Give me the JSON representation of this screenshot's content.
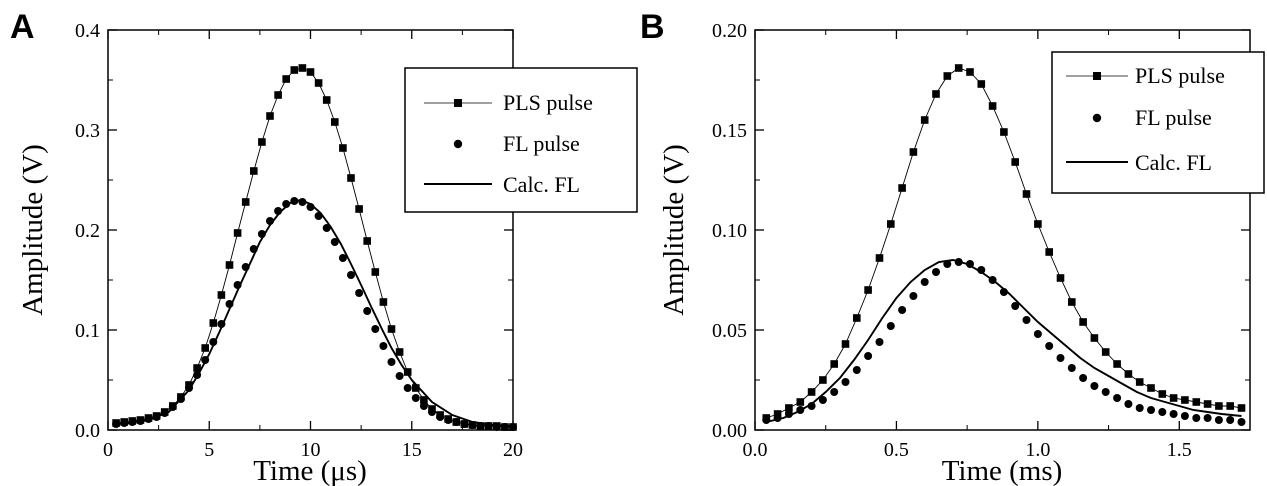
{
  "chart_data": [
    {
      "type": "line",
      "panel_label": "A",
      "xlabel": "Time (μs)",
      "ylabel": "Amplitude (V)",
      "xlim": [
        0,
        20
      ],
      "ylim": [
        0,
        0.4
      ],
      "xticks": [
        "0",
        "5",
        "10",
        "15",
        "20"
      ],
      "yticks": [
        "0.0",
        "0.1",
        "0.2",
        "0.3",
        "0.4"
      ],
      "legend_placement": "top-right",
      "legend": [
        "PLS pulse",
        "FL pulse",
        "Calc. FL"
      ],
      "series": [
        {
          "name": "PLS pulse",
          "style": "squares-thin-line",
          "x": [
            0.4,
            0.8,
            1.2,
            1.6,
            2.0,
            2.4,
            2.8,
            3.2,
            3.6,
            4.0,
            4.4,
            4.8,
            5.2,
            5.6,
            6.0,
            6.4,
            6.8,
            7.2,
            7.6,
            8.0,
            8.4,
            8.8,
            9.2,
            9.6,
            10.0,
            10.4,
            10.8,
            11.2,
            11.6,
            12.0,
            12.4,
            12.8,
            13.2,
            13.6,
            14.0,
            14.4,
            14.8,
            15.2,
            15.6,
            16.0,
            16.4,
            16.8,
            17.2,
            17.6,
            18.0,
            18.4,
            18.8,
            19.2,
            19.6,
            20.0
          ],
          "y": [
            0.007,
            0.008,
            0.009,
            0.01,
            0.012,
            0.014,
            0.018,
            0.024,
            0.033,
            0.045,
            0.062,
            0.082,
            0.107,
            0.135,
            0.165,
            0.197,
            0.228,
            0.259,
            0.288,
            0.314,
            0.335,
            0.351,
            0.36,
            0.362,
            0.358,
            0.347,
            0.33,
            0.308,
            0.282,
            0.252,
            0.221,
            0.189,
            0.158,
            0.128,
            0.101,
            0.078,
            0.058,
            0.042,
            0.03,
            0.021,
            0.015,
            0.011,
            0.008,
            0.006,
            0.005,
            0.004,
            0.004,
            0.004,
            0.003,
            0.003
          ]
        },
        {
          "name": "FL pulse",
          "style": "circles",
          "x": [
            0.4,
            0.8,
            1.2,
            1.6,
            2.0,
            2.4,
            2.8,
            3.2,
            3.6,
            4.0,
            4.4,
            4.8,
            5.2,
            5.6,
            6.0,
            6.4,
            6.8,
            7.2,
            7.6,
            8.0,
            8.4,
            8.8,
            9.2,
            9.6,
            10.0,
            10.4,
            10.8,
            11.2,
            11.6,
            12.0,
            12.4,
            12.8,
            13.2,
            13.6,
            14.0,
            14.4,
            14.8,
            15.2,
            15.6,
            16.0,
            16.4,
            16.8,
            17.2,
            17.6,
            18.0,
            18.4,
            18.8,
            19.2,
            19.6,
            20.0
          ],
          "y": [
            0.006,
            0.007,
            0.008,
            0.009,
            0.011,
            0.013,
            0.017,
            0.023,
            0.031,
            0.042,
            0.055,
            0.07,
            0.088,
            0.106,
            0.126,
            0.145,
            0.163,
            0.181,
            0.196,
            0.209,
            0.219,
            0.226,
            0.229,
            0.228,
            0.223,
            0.214,
            0.202,
            0.188,
            0.172,
            0.155,
            0.137,
            0.119,
            0.101,
            0.084,
            0.068,
            0.054,
            0.042,
            0.032,
            0.024,
            0.018,
            0.013,
            0.01,
            0.008,
            0.006,
            0.005,
            0.004,
            0.004,
            0.003,
            0.003,
            0.003
          ]
        },
        {
          "name": "Calc. FL",
          "style": "solid-line",
          "x": [
            0.4,
            1.0,
            2.0,
            3.0,
            4.0,
            4.5,
            5.0,
            5.5,
            6.0,
            6.5,
            7.0,
            7.5,
            8.0,
            8.5,
            9.0,
            9.5,
            10.0,
            10.5,
            11.0,
            11.5,
            12.0,
            12.5,
            13.0,
            13.5,
            14.0,
            14.5,
            15.0,
            16.0,
            17.0,
            18.0,
            19.0,
            20.0
          ],
          "y": [
            0.006,
            0.007,
            0.01,
            0.018,
            0.04,
            0.057,
            0.076,
            0.098,
            0.121,
            0.144,
            0.166,
            0.188,
            0.205,
            0.218,
            0.227,
            0.23,
            0.226,
            0.217,
            0.203,
            0.186,
            0.166,
            0.145,
            0.123,
            0.102,
            0.082,
            0.065,
            0.05,
            0.028,
            0.015,
            0.008,
            0.005,
            0.004
          ]
        }
      ]
    },
    {
      "type": "line",
      "panel_label": "B",
      "xlabel": "Time (ms)",
      "ylabel": "Amplitude (V)",
      "xlim": [
        0,
        1.75
      ],
      "ylim": [
        0,
        0.2
      ],
      "xticks": [
        "0.0",
        "0.5",
        "1.0",
        "1.5"
      ],
      "yticks": [
        "0.00",
        "0.05",
        "0.10",
        "0.15",
        "0.20"
      ],
      "legend_placement": "top-right",
      "legend": [
        "PLS pulse",
        "FL pulse",
        "Calc. FL"
      ],
      "series": [
        {
          "name": "PLS pulse",
          "style": "squares-thin-line",
          "x": [
            0.04,
            0.08,
            0.12,
            0.16,
            0.2,
            0.24,
            0.28,
            0.32,
            0.36,
            0.4,
            0.44,
            0.48,
            0.52,
            0.56,
            0.6,
            0.64,
            0.68,
            0.72,
            0.76,
            0.8,
            0.84,
            0.88,
            0.92,
            0.96,
            1.0,
            1.04,
            1.08,
            1.12,
            1.16,
            1.2,
            1.24,
            1.28,
            1.32,
            1.36,
            1.4,
            1.44,
            1.48,
            1.52,
            1.56,
            1.6,
            1.64,
            1.68,
            1.72
          ],
          "y": [
            0.006,
            0.008,
            0.011,
            0.014,
            0.019,
            0.025,
            0.033,
            0.043,
            0.056,
            0.07,
            0.086,
            0.103,
            0.121,
            0.139,
            0.155,
            0.168,
            0.177,
            0.181,
            0.179,
            0.173,
            0.162,
            0.149,
            0.134,
            0.118,
            0.103,
            0.089,
            0.076,
            0.064,
            0.054,
            0.046,
            0.039,
            0.033,
            0.028,
            0.024,
            0.021,
            0.018,
            0.016,
            0.015,
            0.014,
            0.013,
            0.012,
            0.012,
            0.011
          ]
        },
        {
          "name": "FL pulse",
          "style": "circles",
          "x": [
            0.04,
            0.08,
            0.12,
            0.16,
            0.2,
            0.24,
            0.28,
            0.32,
            0.36,
            0.4,
            0.44,
            0.48,
            0.52,
            0.56,
            0.6,
            0.64,
            0.68,
            0.72,
            0.76,
            0.8,
            0.84,
            0.88,
            0.92,
            0.96,
            1.0,
            1.04,
            1.08,
            1.12,
            1.16,
            1.2,
            1.24,
            1.28,
            1.32,
            1.36,
            1.4,
            1.44,
            1.48,
            1.52,
            1.56,
            1.6,
            1.64,
            1.68,
            1.72
          ],
          "y": [
            0.005,
            0.006,
            0.008,
            0.01,
            0.012,
            0.015,
            0.019,
            0.024,
            0.03,
            0.037,
            0.044,
            0.052,
            0.06,
            0.067,
            0.074,
            0.079,
            0.083,
            0.084,
            0.083,
            0.08,
            0.075,
            0.069,
            0.062,
            0.055,
            0.048,
            0.042,
            0.036,
            0.031,
            0.026,
            0.022,
            0.019,
            0.016,
            0.013,
            0.011,
            0.01,
            0.009,
            0.008,
            0.007,
            0.006,
            0.006,
            0.005,
            0.005,
            0.004
          ]
        },
        {
          "name": "Calc. FL",
          "style": "solid-line",
          "x": [
            0.04,
            0.1,
            0.15,
            0.2,
            0.25,
            0.3,
            0.35,
            0.4,
            0.45,
            0.5,
            0.55,
            0.6,
            0.65,
            0.7,
            0.75,
            0.8,
            0.85,
            0.9,
            0.95,
            1.0,
            1.05,
            1.1,
            1.15,
            1.2,
            1.25,
            1.3,
            1.35,
            1.4,
            1.45,
            1.5,
            1.55,
            1.6,
            1.65,
            1.72
          ],
          "y": [
            0.004,
            0.006,
            0.009,
            0.013,
            0.019,
            0.026,
            0.035,
            0.045,
            0.056,
            0.066,
            0.074,
            0.08,
            0.084,
            0.085,
            0.083,
            0.079,
            0.074,
            0.068,
            0.061,
            0.054,
            0.048,
            0.042,
            0.036,
            0.031,
            0.027,
            0.023,
            0.019,
            0.016,
            0.014,
            0.012,
            0.01,
            0.009,
            0.008,
            0.007
          ]
        }
      ]
    }
  ]
}
